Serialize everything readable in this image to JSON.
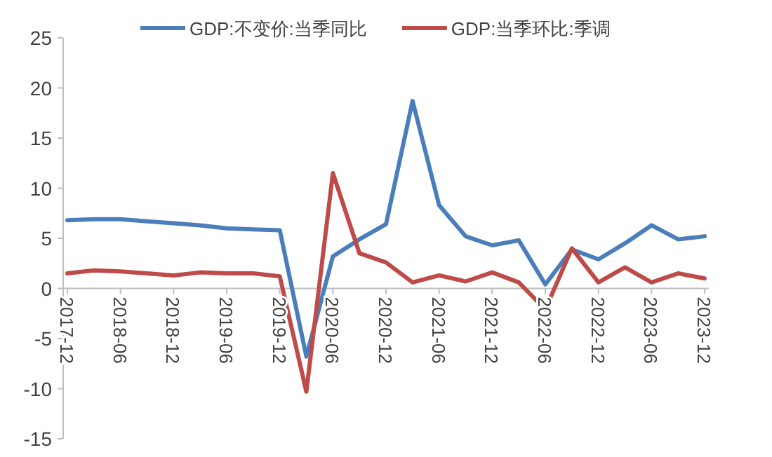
{
  "chart_data": {
    "type": "line",
    "categories": [
      "2017-12",
      null,
      "2018-06",
      null,
      "2018-12",
      null,
      "2019-06",
      null,
      "2019-12",
      null,
      "2020-06",
      null,
      "2020-12",
      null,
      "2021-06",
      null,
      "2021-12",
      null,
      "2022-06",
      null,
      "2022-12",
      null,
      "2023-06",
      null,
      "2023-12"
    ],
    "series": [
      {
        "name": "GDP:不变价:当季同比",
        "color": "#4a7ebb",
        "values": [
          6.8,
          6.9,
          6.9,
          6.7,
          6.5,
          6.3,
          6.0,
          5.9,
          5.8,
          -6.8,
          3.2,
          4.9,
          6.4,
          18.7,
          8.3,
          5.2,
          4.3,
          4.8,
          0.4,
          3.9,
          2.9,
          4.5,
          6.3,
          4.9,
          5.2
        ]
      },
      {
        "name": "GDP:当季环比:季调",
        "color": "#be4b48",
        "values": [
          1.5,
          1.8,
          1.7,
          1.5,
          1.3,
          1.6,
          1.5,
          1.5,
          1.2,
          -10.3,
          11.5,
          3.5,
          2.6,
          0.6,
          1.3,
          0.7,
          1.6,
          0.6,
          -2.1,
          4.0,
          0.6,
          2.1,
          0.6,
          1.5,
          1.0
        ]
      }
    ],
    "ylim": [
      -15,
      25
    ],
    "yticks": [
      -15,
      -10,
      -5,
      0,
      5,
      10,
      15,
      20,
      25
    ],
    "grid": false,
    "legend": "top",
    "marker": "none",
    "line_style": "solid"
  }
}
